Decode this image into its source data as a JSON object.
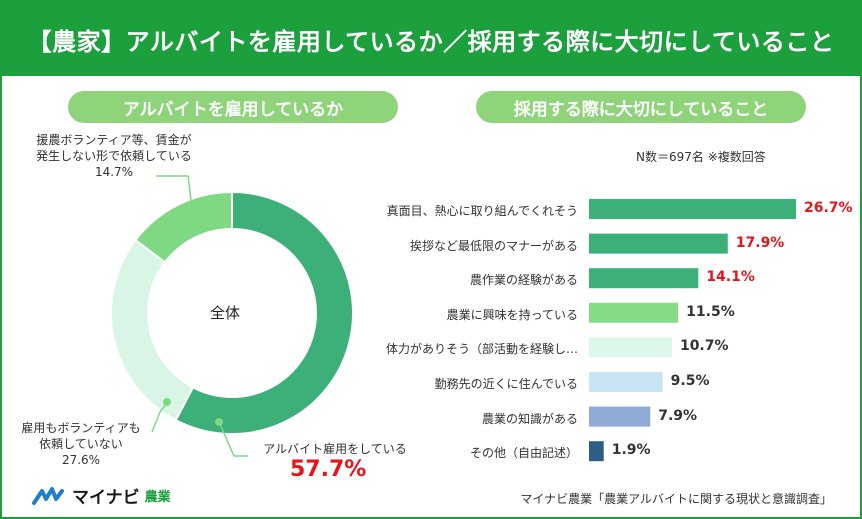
{
  "title": "【農家】アルバイトを雇用しているか／採用する際に大切にしていること",
  "left_panel": {
    "heading": "アルバイトを雇用しているか",
    "center_label": "全体",
    "labels": {
      "volunteer_only": {
        "line1": "援農ボランティア等、賃金が",
        "line2": "発生しない形で依頼している",
        "value": "14.7%"
      },
      "both": {
        "line1": "雇用もボランティアも",
        "line2": "依頼していない",
        "value": "27.6%"
      },
      "employ": {
        "line1": "アルバイト雇用をしている",
        "value": "57.7%"
      }
    }
  },
  "right_panel": {
    "heading": "採用する際に大切にしていること",
    "note": "N数＝697名 ※複数回答"
  },
  "footer": {
    "logo_text": "マイナビ",
    "logo_sub": "農業",
    "source": "マイナビ農業「農業アルバイトに関する現状と意識調査」"
  },
  "colors": {
    "brand": "#1ba03d",
    "accent_red": "#e8141c"
  },
  "chart_data": [
    {
      "type": "pie",
      "title": "アルバイトを雇用しているか",
      "categories": [
        "アルバイト雇用をしている",
        "雇用もボランティアも依頼していない",
        "援農ボランティア等、賃金が発生しない形で依頼している"
      ],
      "values": [
        57.7,
        27.6,
        14.7
      ],
      "colors": [
        "#3db07a",
        "#d9f5e6",
        "#7fd882"
      ],
      "donut": true
    },
    {
      "type": "bar",
      "orientation": "horizontal",
      "title": "採用する際に大切にしていること",
      "categories": [
        "真面目、熱心に取り組んでくれそう",
        "挨拶など最低限のマナーがある",
        "農作業の経験がある",
        "農業に興味を持っている",
        "体力がありそう（部活動を経験し…",
        "勤務先の近くに住んでいる",
        "農業の知識がある",
        "その他（自由記述）"
      ],
      "values": [
        26.7,
        17.9,
        14.1,
        11.5,
        10.7,
        9.5,
        7.9,
        1.9
      ],
      "value_labels": [
        "26.7%",
        "17.9%",
        "14.1%",
        "11.5%",
        "10.7%",
        "9.5%",
        "7.9%",
        "1.9%"
      ],
      "colors": [
        "#3db07a",
        "#3db07a",
        "#3db07a",
        "#86dc86",
        "#ddf7ea",
        "#c6e4f3",
        "#8fabd4",
        "#2d5f86"
      ],
      "value_colors": [
        "#e8141c",
        "#e8141c",
        "#e8141c",
        "#333333",
        "#333333",
        "#333333",
        "#333333",
        "#333333"
      ],
      "xlim": [
        0,
        26.7
      ]
    }
  ]
}
